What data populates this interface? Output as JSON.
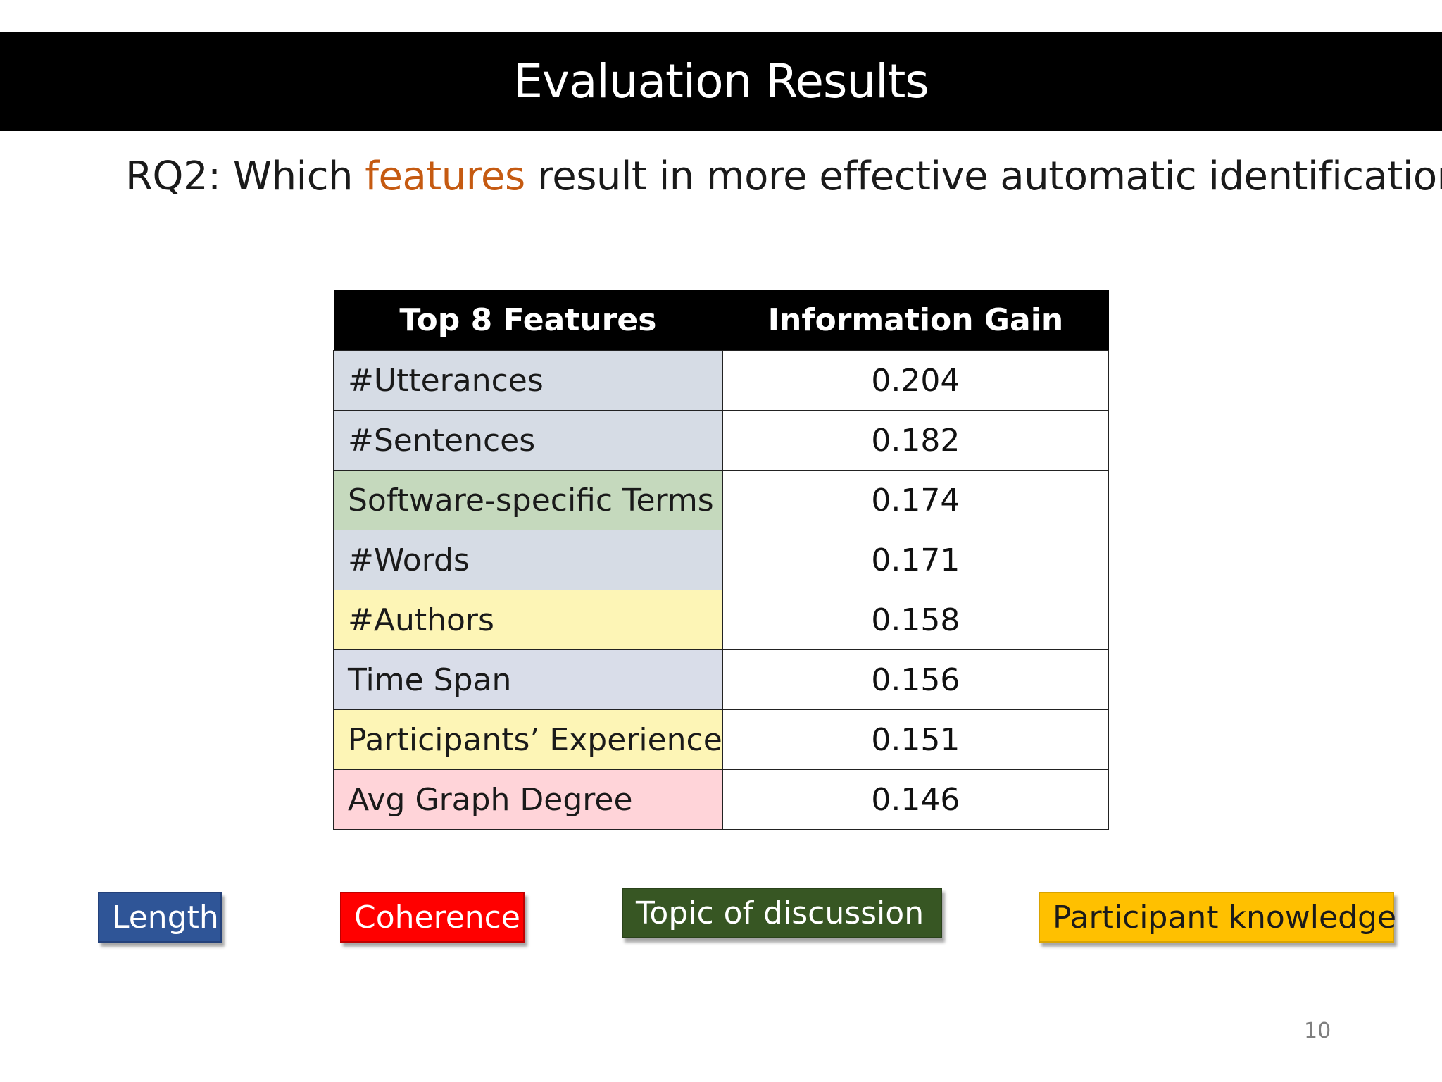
{
  "slide": {
    "title": "Evaluation Results",
    "question": {
      "prefix": "RQ2: Which ",
      "highlight": "features",
      "suffix": " result in more effective automatic identification?",
      "highlight_color": "#c55a11"
    },
    "page_number": "10"
  },
  "table": {
    "headers": [
      "Top 8 Features",
      "Information Gain"
    ],
    "rows": [
      {
        "feature": "#Utterances",
        "gain": "0.204",
        "category": "Length"
      },
      {
        "feature": "#Sentences",
        "gain": "0.182",
        "category": "Length"
      },
      {
        "feature": "Software-specific Terms",
        "gain": "0.174",
        "category": "Topic of discussion"
      },
      {
        "feature": "#Words",
        "gain": "0.171",
        "category": "Length"
      },
      {
        "feature": "#Authors",
        "gain": "0.158",
        "category": "Participant knowledge"
      },
      {
        "feature": "Time Span",
        "gain": "0.156",
        "category": "Length"
      },
      {
        "feature": "Participants’ Experience",
        "gain": "0.151",
        "category": "Participant knowledge"
      },
      {
        "feature": "Avg Graph Degree",
        "gain": "0.146",
        "category": "Coherence"
      }
    ]
  },
  "legend": [
    {
      "label": "Length",
      "color": "#2f5597"
    },
    {
      "label": "Coherence",
      "color": "#ff0000"
    },
    {
      "label": "Topic of discussion",
      "color": "#375623"
    },
    {
      "label": "Participant knowledge",
      "color": "#ffc000"
    }
  ]
}
